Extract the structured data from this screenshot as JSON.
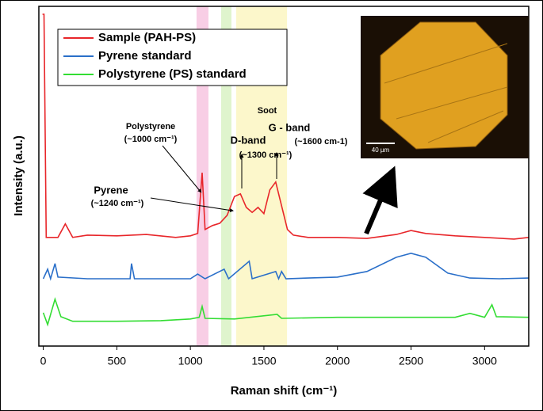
{
  "chart_data": {
    "type": "line",
    "xlabel": "Raman shift (cm⁻¹)",
    "ylabel": "Intensity (a.u.)",
    "xlim": [
      -30,
      3300
    ],
    "ylim": [
      -0.5,
      102.4
    ],
    "xticks": [
      0,
      500,
      1000,
      1500,
      2000,
      2500,
      3000
    ],
    "bands": [
      {
        "color": "#f7c6e0",
        "x": [
          1042,
          1123
        ]
      },
      {
        "color": "#d9f2c4",
        "x": [
          1209,
          1279
        ]
      },
      {
        "color": "#fbf6c2",
        "x": [
          1311,
          1657
        ]
      }
    ],
    "series": [
      {
        "name": "Sample (PAH-PS)",
        "color": "#e8262a",
        "x": [
          -5,
          5,
          20,
          100,
          150,
          200,
          300,
          500,
          700,
          900,
          1000,
          1050,
          1080,
          1100,
          1150,
          1200,
          1250,
          1300,
          1340,
          1380,
          1420,
          1460,
          1500,
          1540,
          1580,
          1620,
          1660,
          1700,
          1800,
          2000,
          2200,
          2400,
          2500,
          2600,
          2800,
          3000,
          3200,
          3300
        ],
        "values": [
          100,
          100,
          32.4,
          32.4,
          36.5,
          32.4,
          33.1,
          32.9,
          33.3,
          32.4,
          32.9,
          33.6,
          52.0,
          34.8,
          36.0,
          36.7,
          39.1,
          44.8,
          45.6,
          41.5,
          40.0,
          41.5,
          39.6,
          46.8,
          49.2,
          42.0,
          34.8,
          33.1,
          32.4,
          32.4,
          32.1,
          33.3,
          34.5,
          33.6,
          32.9,
          32.4,
          31.9,
          32.4
        ]
      },
      {
        "name": "Pyrene standard",
        "color": "#2a6fc9",
        "x": [
          0,
          30,
          50,
          80,
          100,
          300,
          590,
          600,
          620,
          1000,
          1050,
          1100,
          1230,
          1260,
          1400,
          1420,
          1580,
          1600,
          1620,
          1650,
          1800,
          2000,
          2200,
          2400,
          2500,
          2600,
          2750,
          2900,
          3100,
          3300
        ],
        "values": [
          19.9,
          22.8,
          19.9,
          24.5,
          20.4,
          19.9,
          19.9,
          24.5,
          19.9,
          19.9,
          21.3,
          19.9,
          22.8,
          19.9,
          25.2,
          19.9,
          22.1,
          19.9,
          22.1,
          19.9,
          20.1,
          20.4,
          22.1,
          26.4,
          27.6,
          26.4,
          21.6,
          20.1,
          19.9,
          20.1
        ]
      },
      {
        "name": "Polystyrene (PS) standard",
        "color": "#33dd33",
        "x": [
          0,
          30,
          80,
          120,
          200,
          500,
          800,
          1000,
          1060,
          1080,
          1100,
          1300,
          1590,
          1620,
          2000,
          2500,
          2800,
          2900,
          3000,
          3050,
          3080,
          3300
        ],
        "values": [
          9.6,
          6.0,
          13.7,
          8.4,
          7.0,
          7.0,
          7.2,
          7.7,
          8.2,
          11.5,
          7.9,
          7.7,
          9.1,
          7.9,
          8.2,
          8.2,
          8.2,
          9.4,
          8.2,
          12.0,
          8.4,
          8.2
        ]
      }
    ],
    "annotations": [
      "Soot",
      "Polystyrene",
      "(~1000 cm⁻¹)",
      "Pyrene",
      "(~1240 cm⁻¹)",
      "D-band",
      "(~1300 cm⁻¹)",
      "G - band",
      "(~1600 cm-1)"
    ],
    "inset_scale_label": "40 µm"
  }
}
